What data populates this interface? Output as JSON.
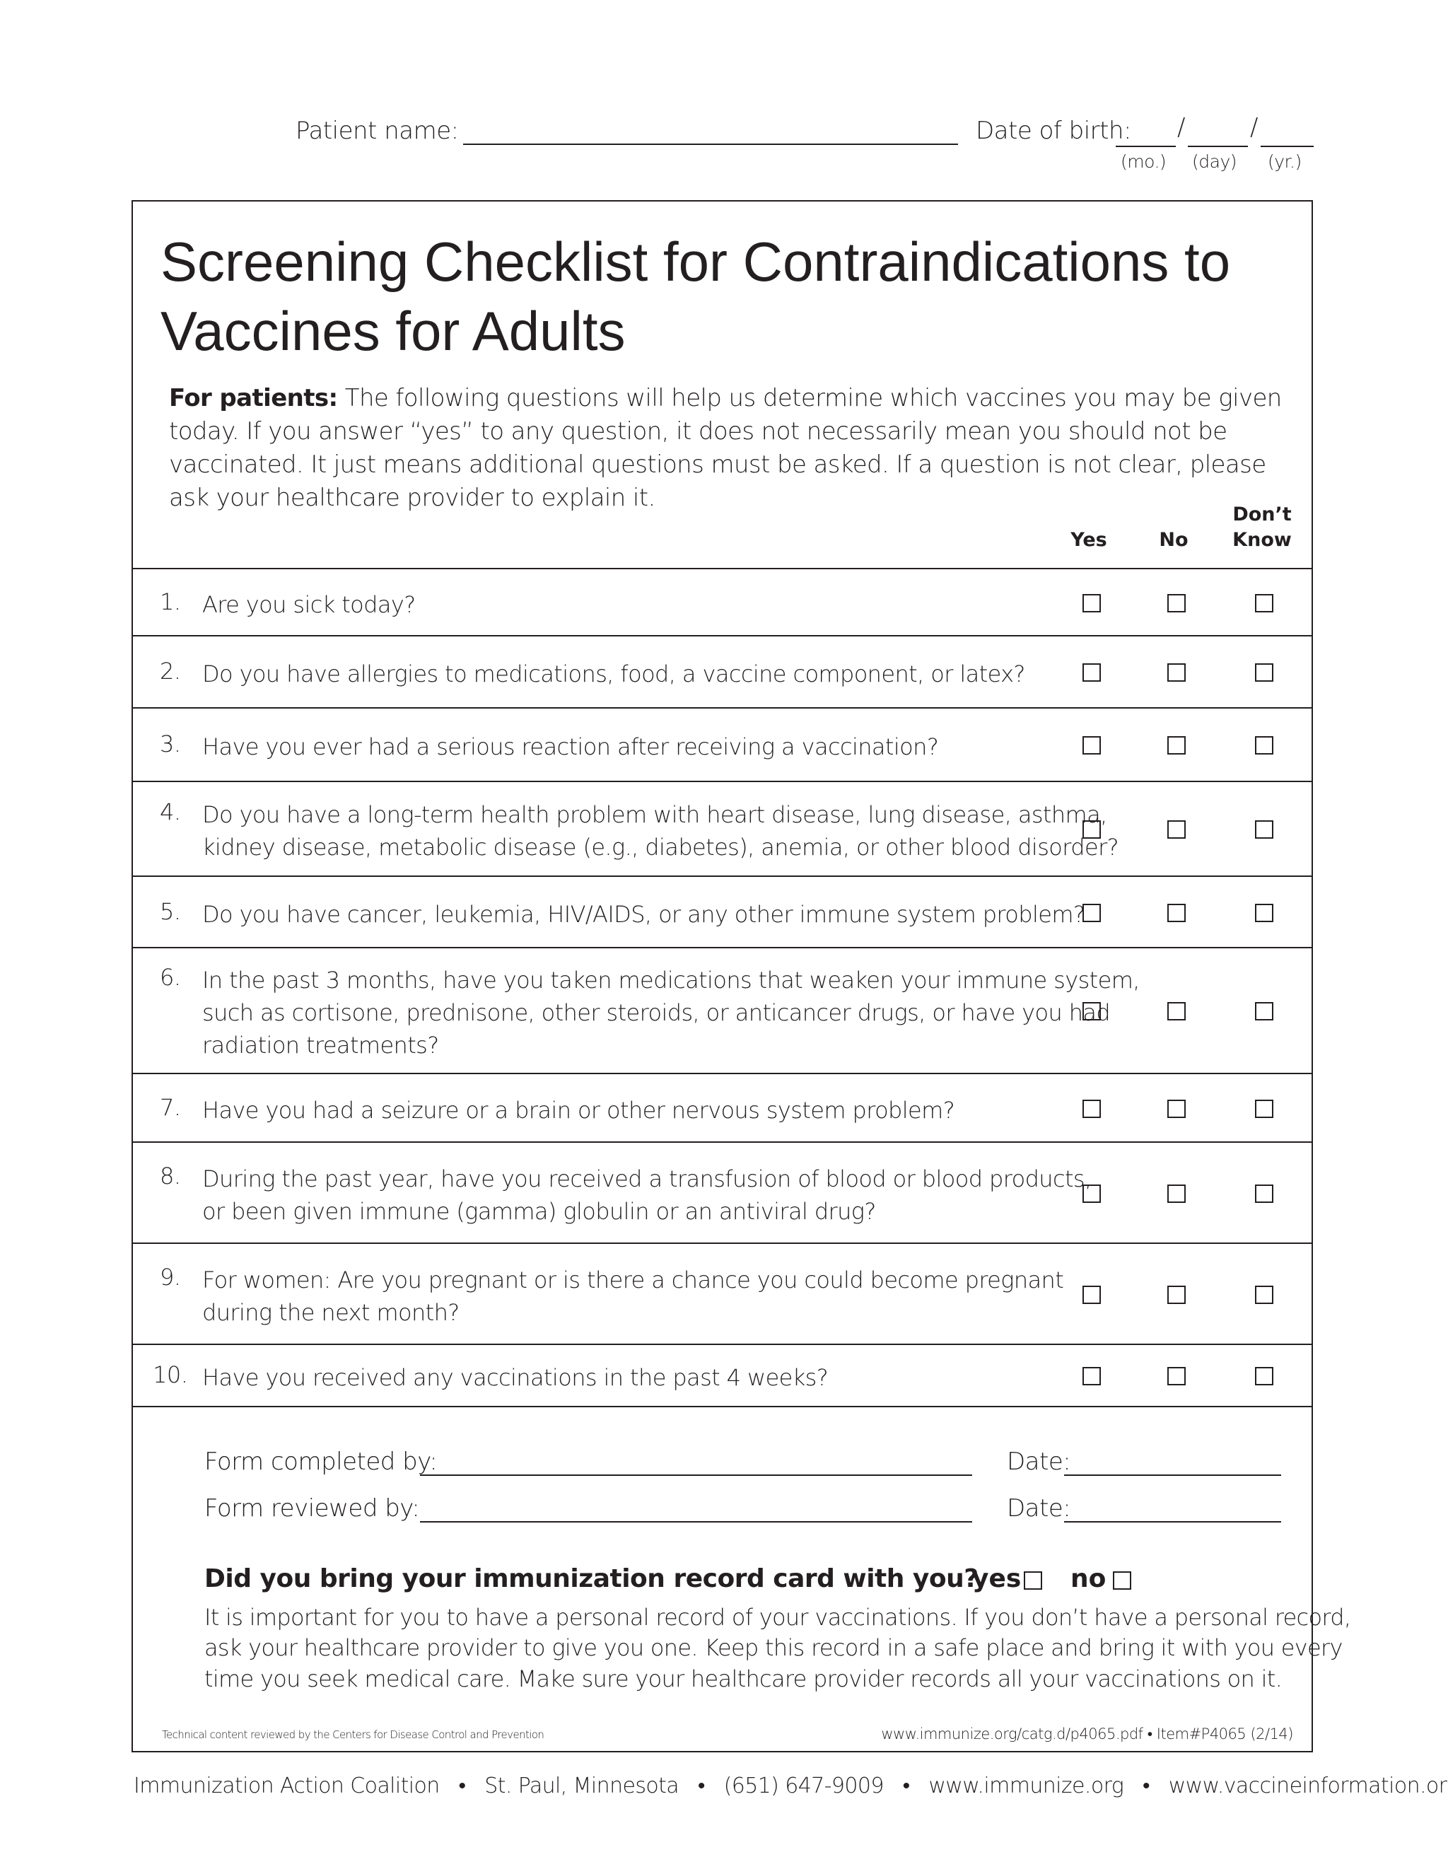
{
  "header": {
    "patient_name_label": "Patient name:",
    "dob_label": "Date of birth:",
    "dob_sep": "/",
    "dob_mo": "(mo.)",
    "dob_day": "(day)",
    "dob_yr": "(yr.)"
  },
  "title_line1": "Screening Checklist for Contraindications to",
  "title_line2": "Vaccines for Adults",
  "intro": {
    "lead": "For patients:",
    "text": " The following questions will help us determine which vaccines you may be given today. If you answer “yes” to any question, it does not necessarily mean you should not be vaccinated. It just means additional questions must be asked. If a question is not clear, please ask your healthcare provider to explain it."
  },
  "columns": {
    "yes": "Yes",
    "no": "No",
    "dont1": "Don’t",
    "dont2": "Know"
  },
  "questions": [
    {
      "num": "1.",
      "lines": [
        "Are you sick today?"
      ]
    },
    {
      "num": "2.",
      "lines": [
        "Do you have allergies to medications, food, a vaccine component, or latex?"
      ]
    },
    {
      "num": "3.",
      "lines": [
        "Have you ever had a serious reaction after receiving a vaccination?"
      ]
    },
    {
      "num": "4.",
      "lines": [
        "Do you have a long-term health problem with heart disease, lung disease, asthma,",
        "kidney disease, metabolic disease (e.g., diabetes), anemia, or other blood disorder?"
      ]
    },
    {
      "num": "5.",
      "lines": [
        "Do you have cancer, leukemia, HIV/AIDS, or any other immune system problem?"
      ]
    },
    {
      "num": "6.",
      "lines": [
        "In the past 3 months, have you taken medications that weaken your immune system,",
        "such as cortisone, prednisone, other steroids, or anticancer drugs, or have you had",
        "radiation treatments?"
      ]
    },
    {
      "num": "7.",
      "lines": [
        "Have you had a seizure or a brain or other nervous system problem?"
      ]
    },
    {
      "num": "8.",
      "lines": [
        "During the past year, have you received a transfusion of blood or blood products,",
        "or been given immune (gamma) globulin or an antiviral drug?"
      ]
    },
    {
      "num": "9.",
      "lines": [
        "For women: Are you pregnant or is there a chance you could become pregnant",
        "during the next month?"
      ]
    },
    {
      "num": "10.",
      "lines": [
        "Have you received any vaccinations in the past 4 weeks?"
      ]
    }
  ],
  "signoff": {
    "completed_label": "Form completed by:",
    "reviewed_label": "Form reviewed by:",
    "date_label": "Date:"
  },
  "record": {
    "question": "Did you bring your immunization record card with you?",
    "yes": "yes",
    "no": "no",
    "lines": [
      "It is important for you to have a personal record of your vaccinations.  If you don’t have a personal record,",
      "ask your healthcare provider to give you one.  Keep this record in a safe place and bring it with you every",
      "time you seek medical care.  Make sure your healthcare provider records all your vaccinations on it."
    ]
  },
  "fine_print": {
    "left": "Technical content reviewed by the Centers for Disease Control and Prevention",
    "right": "www.immunize.org/catg.d/p4065.pdf  •  Item#P4065  (2/14)"
  },
  "footer": "Immunization Action Coalition   •   St. Paul, Minnesota   •   (651) 647-9009   •   www.immunize.org   •   www.vaccineinformation.org"
}
